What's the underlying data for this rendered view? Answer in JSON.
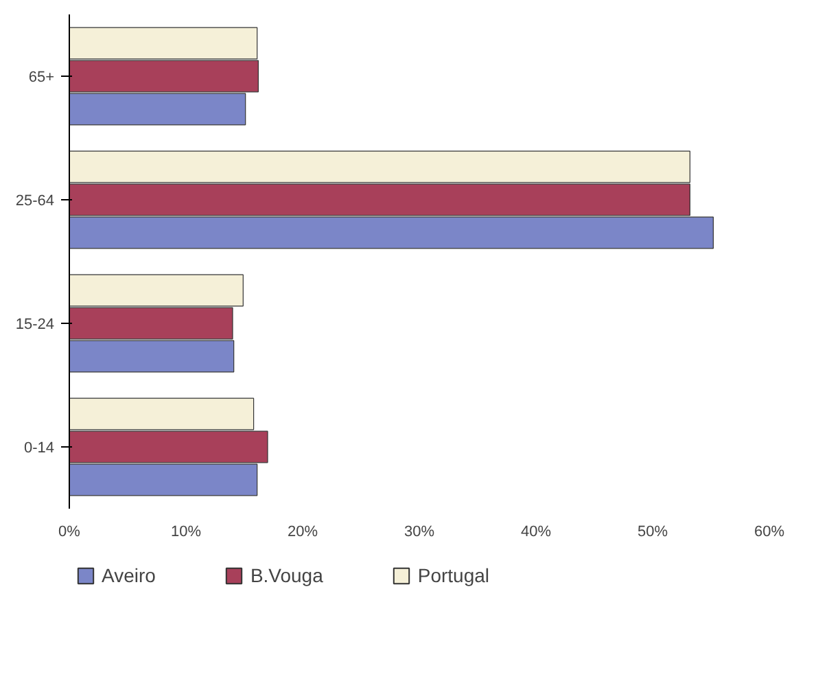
{
  "chart_data": {
    "type": "bar",
    "orientation": "horizontal",
    "categories": [
      "65+",
      "25-64",
      "15-24",
      "0-14"
    ],
    "series": [
      {
        "name": "Aveiro",
        "color": "#7b86c8",
        "values": [
          15.1,
          55.2,
          14.1,
          16.1
        ]
      },
      {
        "name": "B.Vouga",
        "color": "#a8405a",
        "values": [
          16.2,
          53.2,
          14.0,
          17.0
        ]
      },
      {
        "name": "Portugal",
        "color": "#f5f0d8",
        "values": [
          16.1,
          53.2,
          14.9,
          15.8
        ]
      }
    ],
    "xlim": [
      0,
      60
    ],
    "xticks": [
      {
        "value": 0,
        "label": "0%"
      },
      {
        "value": 10,
        "label": "10%"
      },
      {
        "value": 20,
        "label": "20%"
      },
      {
        "value": 30,
        "label": "30%"
      },
      {
        "value": 40,
        "label": "40%"
      },
      {
        "value": 50,
        "label": "50%"
      },
      {
        "value": 60,
        "label": "60%"
      }
    ],
    "grid": false,
    "legend": "bottom"
  }
}
